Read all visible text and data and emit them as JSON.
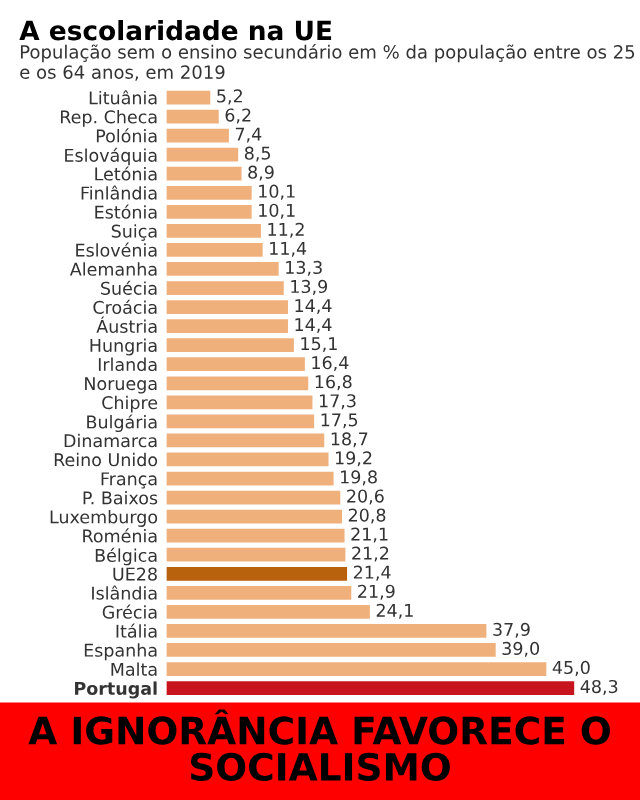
{
  "chart_data": {
    "type": "bar",
    "orientation": "horizontal",
    "title": "A escolaridade na UE",
    "subtitle": "População sem o ensino secundário em % da população entre os 25 e os 64 anos, em 2019",
    "categories": [
      "Lituânia",
      "Rep. Checa",
      "Polónia",
      "Eslováquia",
      "Letónia",
      "Finlândia",
      "Estónia",
      "Suiça",
      "Eslovénia",
      "Alemanha",
      "Suécia",
      "Croácia",
      "Áustria",
      "Hungria",
      "Irlanda",
      "Noruega",
      "Chipre",
      "Bulgária",
      "Dinamarca",
      "Reino Unido",
      "França",
      "P. Baixos",
      "Luxemburgo",
      "Roménia",
      "Bélgica",
      "UE28",
      "Islândia",
      "Grécia",
      "Itália",
      "Espanha",
      "Malta",
      "Portugal"
    ],
    "values": [
      5.2,
      6.2,
      7.4,
      8.5,
      8.9,
      10.1,
      10.1,
      11.2,
      11.4,
      13.3,
      13.9,
      14.4,
      14.4,
      15.1,
      16.4,
      16.8,
      17.3,
      17.5,
      18.7,
      19.2,
      19.8,
      20.6,
      20.8,
      21.1,
      21.2,
      21.4,
      21.9,
      24.1,
      37.9,
      39.0,
      45.0,
      48.3
    ],
    "value_labels": [
      "5,2",
      "6,2",
      "7,4",
      "8,5",
      "8,9",
      "10,1",
      "10,1",
      "11,2",
      "11,4",
      "13,3",
      "13,9",
      "14,4",
      "14,4",
      "15,1",
      "16,4",
      "16,8",
      "17,3",
      "17,5",
      "18,7",
      "19,2",
      "19,8",
      "20,6",
      "20,8",
      "21,1",
      "21,2",
      "21,4",
      "21,9",
      "24,1",
      "37,9",
      "39,0",
      "45,0",
      "48,3"
    ],
    "colors": [
      "#f0b07c",
      "#f0b07c",
      "#f0b07c",
      "#f0b07c",
      "#f0b07c",
      "#f0b07c",
      "#f0b07c",
      "#f0b07c",
      "#f0b07c",
      "#f0b07c",
      "#f0b07c",
      "#f0b07c",
      "#f0b07c",
      "#f0b07c",
      "#f0b07c",
      "#f0b07c",
      "#f0b07c",
      "#f0b07c",
      "#f0b07c",
      "#f0b07c",
      "#f0b07c",
      "#f0b07c",
      "#f0b07c",
      "#f0b07c",
      "#f0b07c",
      "#b8620e",
      "#f0b07c",
      "#f0b07c",
      "#f0b07c",
      "#f0b07c",
      "#f0b07c",
      "#c8141e"
    ],
    "annotations": [
      "A IGNORÂNCIA FAVORECE O SOCIALISMO"
    ]
  }
}
